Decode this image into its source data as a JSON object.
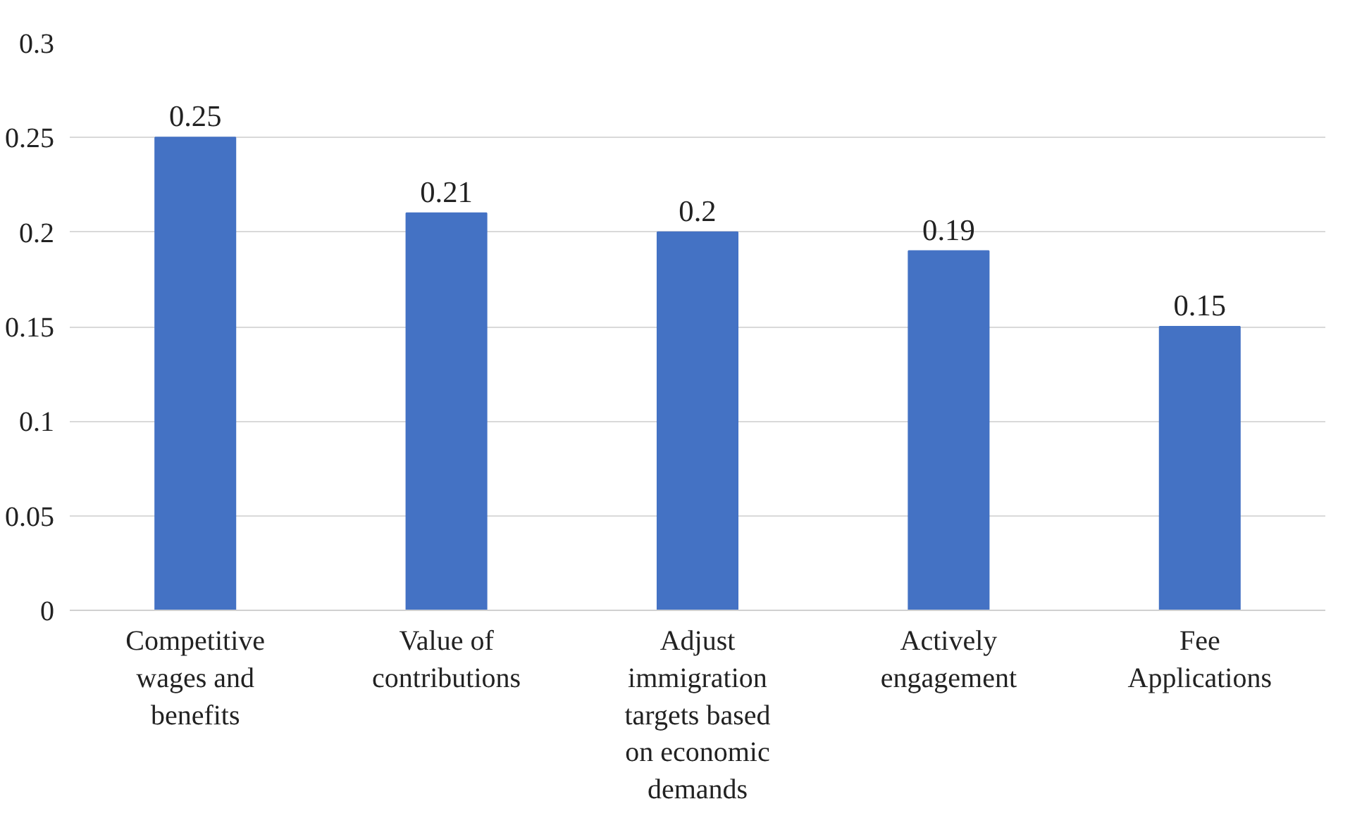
{
  "chart_data": {
    "type": "bar",
    "categories": [
      "Competitive wages and benefits",
      "Value of contributions",
      "Adjust immigration targets based on economic demands",
      "Actively engagement",
      "Fee Applications"
    ],
    "values": [
      0.25,
      0.21,
      0.2,
      0.19,
      0.15
    ],
    "color": "#4472c4",
    "ylim": [
      0,
      0.3
    ],
    "yticks": [
      0,
      0.05,
      0.1,
      0.15,
      0.2,
      0.25,
      0.3
    ],
    "grid": "y",
    "data_labels": true
  }
}
